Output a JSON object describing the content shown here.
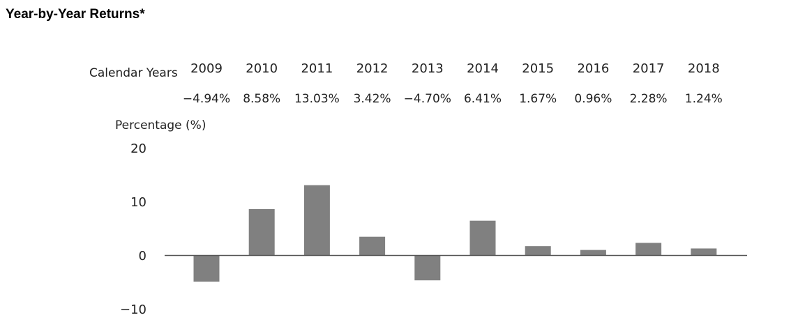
{
  "title": "Year-by-Year Returns*",
  "chart_data": {
    "type": "bar",
    "row_label": "Calendar Years",
    "ylabel": "Percentage (%)",
    "categories": [
      "2009",
      "2010",
      "2011",
      "2012",
      "2013",
      "2014",
      "2015",
      "2016",
      "2017",
      "2018"
    ],
    "values": [
      -4.94,
      8.58,
      13.03,
      3.42,
      -4.7,
      6.41,
      1.67,
      0.96,
      2.28,
      1.24
    ],
    "value_labels": [
      "−4.94%",
      "8.58%",
      "13.03%",
      "3.42%",
      "−4.70%",
      "6.41%",
      "1.67%",
      "0.96%",
      "2.28%",
      "1.24%"
    ],
    "yticks": [
      20,
      10,
      0,
      -10
    ],
    "ytick_labels": [
      "20",
      "10",
      "0",
      "−10"
    ],
    "ylim": [
      -10,
      20
    ],
    "bar_color": "#808080",
    "grid": false
  }
}
